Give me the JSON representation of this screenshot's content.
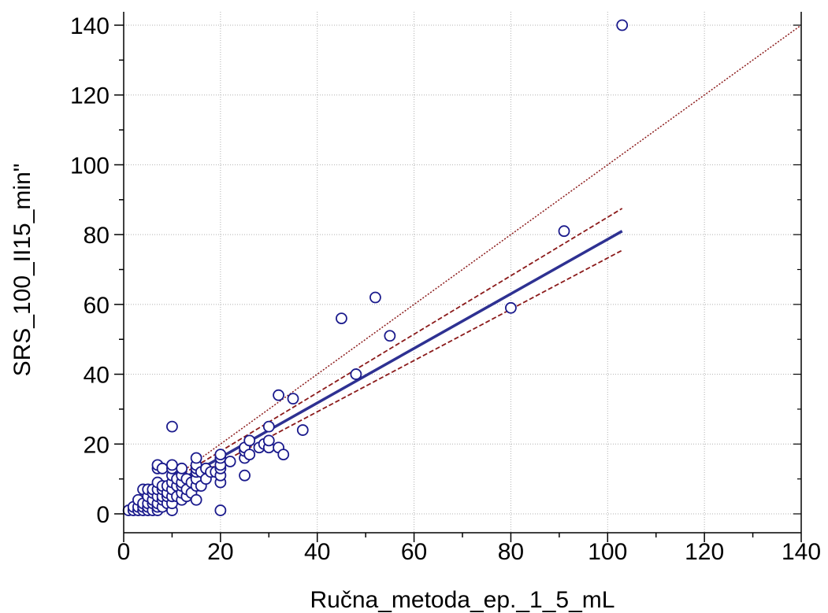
{
  "chart_data": {
    "type": "scatter",
    "title": "",
    "xlabel": "Ručna_metoda_ep._1_5_mL",
    "ylabel": "SRS_100_II15_min\"",
    "xlim": [
      0,
      140
    ],
    "ylim": [
      0,
      140
    ],
    "xticks": [
      0,
      20,
      40,
      60,
      80,
      100,
      120,
      140
    ],
    "yticks": [
      0,
      20,
      40,
      60,
      80,
      100,
      120,
      140
    ],
    "grid": true,
    "colors": {
      "points": "#1a1a8c",
      "regression": "#2e3192",
      "confidence": "#8b1a1a",
      "identity": "#8b1a1a",
      "grid": "#b0b0b0"
    },
    "points": [
      [
        1,
        1
      ],
      [
        2,
        1
      ],
      [
        2,
        2
      ],
      [
        3,
        1
      ],
      [
        3,
        2
      ],
      [
        3,
        4
      ],
      [
        4,
        1
      ],
      [
        4,
        2
      ],
      [
        4,
        3
      ],
      [
        4,
        7
      ],
      [
        5,
        1
      ],
      [
        5,
        2
      ],
      [
        5,
        3
      ],
      [
        5,
        5
      ],
      [
        5,
        7
      ],
      [
        6,
        1
      ],
      [
        6,
        3
      ],
      [
        6,
        4
      ],
      [
        6,
        6
      ],
      [
        6,
        7
      ],
      [
        7,
        1
      ],
      [
        7,
        2
      ],
      [
        7,
        3
      ],
      [
        7,
        5
      ],
      [
        7,
        7
      ],
      [
        7,
        9
      ],
      [
        7,
        13
      ],
      [
        7,
        14
      ],
      [
        8,
        2
      ],
      [
        8,
        4
      ],
      [
        8,
        5
      ],
      [
        8,
        7
      ],
      [
        8,
        8
      ],
      [
        8,
        13
      ],
      [
        9,
        3
      ],
      [
        9,
        5
      ],
      [
        9,
        6
      ],
      [
        9,
        8
      ],
      [
        10,
        1
      ],
      [
        10,
        3
      ],
      [
        10,
        5
      ],
      [
        10,
        7
      ],
      [
        10,
        9
      ],
      [
        10,
        11
      ],
      [
        10,
        13
      ],
      [
        10,
        14
      ],
      [
        10,
        25
      ],
      [
        11,
        5
      ],
      [
        11,
        8
      ],
      [
        11,
        10
      ],
      [
        12,
        4
      ],
      [
        12,
        6
      ],
      [
        12,
        8
      ],
      [
        12,
        9
      ],
      [
        12,
        11
      ],
      [
        12,
        13
      ],
      [
        13,
        5
      ],
      [
        13,
        7
      ],
      [
        13,
        10
      ],
      [
        14,
        6
      ],
      [
        14,
        9
      ],
      [
        15,
        4
      ],
      [
        15,
        8
      ],
      [
        15,
        10
      ],
      [
        15,
        12
      ],
      [
        15,
        13
      ],
      [
        15,
        14
      ],
      [
        15,
        16
      ],
      [
        16,
        8
      ],
      [
        16,
        12
      ],
      [
        17,
        10
      ],
      [
        17,
        13
      ],
      [
        18,
        12
      ],
      [
        19,
        12
      ],
      [
        20,
        1
      ],
      [
        20,
        9
      ],
      [
        20,
        11
      ],
      [
        20,
        13
      ],
      [
        20,
        14
      ],
      [
        20,
        16
      ],
      [
        20,
        17
      ],
      [
        22,
        15
      ],
      [
        25,
        11
      ],
      [
        25,
        16
      ],
      [
        25,
        18
      ],
      [
        25,
        19
      ],
      [
        26,
        17
      ],
      [
        26,
        21
      ],
      [
        28,
        19
      ],
      [
        29,
        20
      ],
      [
        30,
        19
      ],
      [
        30,
        21
      ],
      [
        30,
        25
      ],
      [
        32,
        19
      ],
      [
        32,
        34
      ],
      [
        33,
        17
      ],
      [
        35,
        33
      ],
      [
        37,
        24
      ],
      [
        45,
        56
      ],
      [
        48,
        40
      ],
      [
        52,
        62
      ],
      [
        55,
        51
      ],
      [
        80,
        59
      ],
      [
        91,
        81
      ],
      [
        103,
        140
      ]
    ],
    "regression": {
      "from": [
        1,
        1.3
      ],
      "to": [
        103,
        81
      ]
    },
    "ci_upper": {
      "from": [
        1,
        2.0
      ],
      "to": [
        103,
        87.5
      ]
    },
    "ci_lower": {
      "from": [
        1,
        0.6
      ],
      "to": [
        103,
        75.5
      ]
    },
    "identity_line": {
      "from": [
        0,
        0
      ],
      "to": [
        140,
        140
      ]
    }
  }
}
